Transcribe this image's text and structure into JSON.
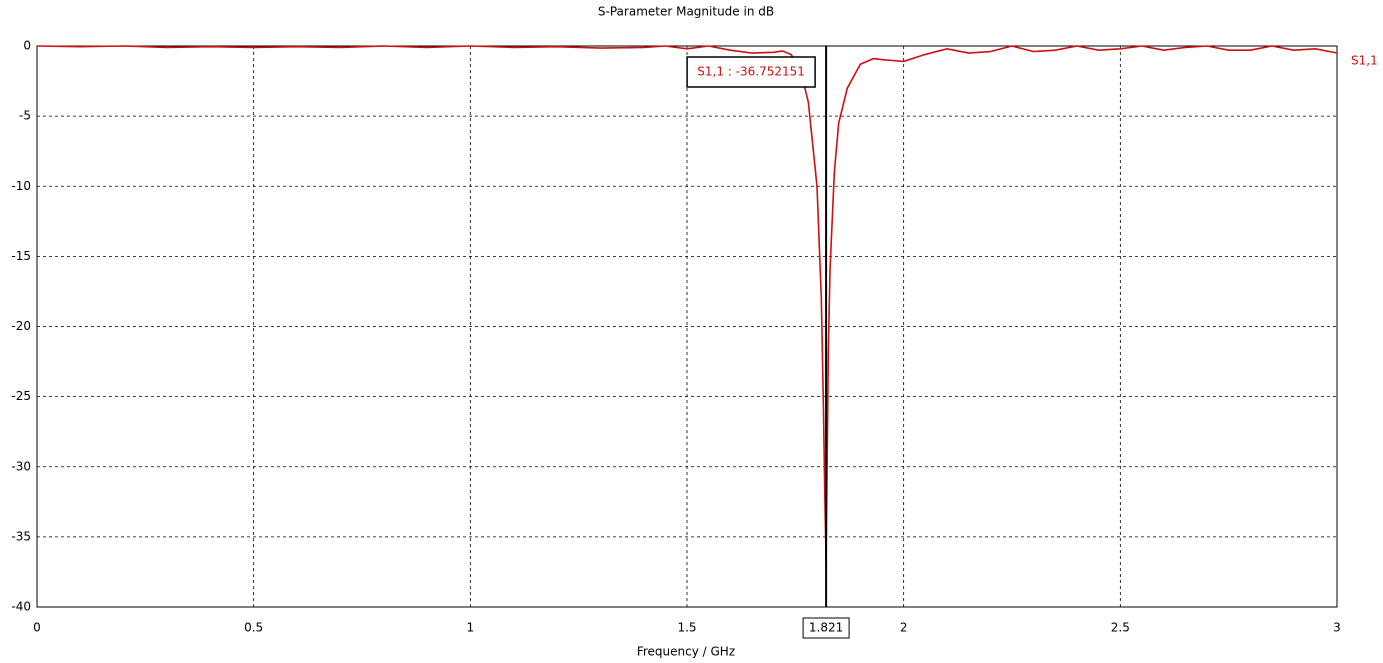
{
  "chart_data": {
    "type": "line",
    "title": "S-Parameter Magnitude in dB",
    "x_label": "Frequency / GHz",
    "x": [
      0,
      0.1,
      0.2,
      0.3,
      0.4,
      0.5,
      0.6,
      0.7,
      0.8,
      0.9,
      1.0,
      1.1,
      1.2,
      1.3,
      1.4,
      1.45,
      1.5,
      1.55,
      1.6,
      1.65,
      1.7,
      1.72,
      1.74,
      1.76,
      1.78,
      1.8,
      1.81,
      1.815,
      1.818,
      1.821,
      1.823,
      1.826,
      1.83,
      1.84,
      1.85,
      1.87,
      1.9,
      1.93,
      1.96,
      2.0,
      2.05,
      2.1,
      2.15,
      2.2,
      2.25,
      2.3,
      2.35,
      2.4,
      2.45,
      2.5,
      2.55,
      2.6,
      2.65,
      2.7,
      2.75,
      2.8,
      2.85,
      2.9,
      2.95,
      3.0
    ],
    "series": [
      {
        "name": "S1,1",
        "color": "#cc1111",
        "values": [
          0,
          -0.05,
          0,
          -0.1,
          -0.05,
          -0.1,
          -0.05,
          -0.1,
          0,
          -0.1,
          0,
          -0.1,
          -0.05,
          -0.15,
          -0.1,
          0,
          -0.2,
          0,
          -0.3,
          -0.5,
          -0.45,
          -0.35,
          -0.6,
          -1.5,
          -4,
          -10,
          -18,
          -26,
          -32,
          -36.75,
          -31,
          -22,
          -16,
          -9,
          -5.5,
          -3,
          -1.3,
          -0.9,
          -1.0,
          -1.1,
          -0.6,
          -0.2,
          -0.5,
          -0.4,
          0,
          -0.4,
          -0.3,
          0,
          -0.3,
          -0.2,
          0,
          -0.3,
          -0.1,
          0,
          -0.3,
          -0.3,
          0,
          -0.3,
          -0.2,
          -0.5
        ]
      }
    ],
    "xlim": [
      0,
      3
    ],
    "ylim": [
      -40,
      0
    ],
    "xticks": [
      0,
      0.5,
      1,
      1.5,
      2,
      2.5,
      3
    ],
    "yticks": [
      0,
      -5,
      -10,
      -15,
      -20,
      -25,
      -30,
      -35,
      -40
    ],
    "grid": true,
    "marker": {
      "x": 1.821,
      "label": "S1,1 : -36.752151"
    }
  }
}
